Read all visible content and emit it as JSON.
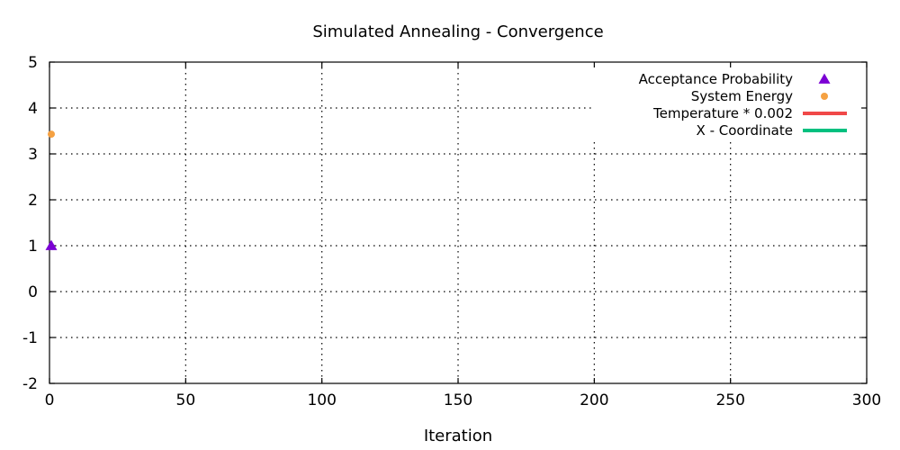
{
  "chart_data": {
    "type": "scatter",
    "title": "Simulated Annealing - Convergence",
    "xlabel": "Iteration",
    "ylabel": "",
    "xlim": [
      0,
      300
    ],
    "ylim": [
      -2,
      5
    ],
    "x_ticks": [
      0,
      50,
      100,
      150,
      200,
      250,
      300
    ],
    "y_ticks": [
      -2,
      -1,
      0,
      1,
      2,
      3,
      4,
      5
    ],
    "x_tick_labels": [
      "0",
      "50",
      "100",
      "150",
      "200",
      "250",
      "300"
    ],
    "y_tick_labels": [
      "-2",
      "-1",
      "0",
      "1",
      "2",
      "3",
      "4",
      "5"
    ],
    "grid": true,
    "legend_position": "top-right",
    "series": [
      {
        "name": "Acceptance Probability",
        "style": "points",
        "marker": "triangle",
        "color": "#7b00d4",
        "x": [
          0
        ],
        "y": [
          1.0
        ]
      },
      {
        "name": "System Energy",
        "style": "points",
        "marker": "circle",
        "color": "#f5a142",
        "x": [
          0
        ],
        "y": [
          3.43
        ]
      },
      {
        "name": "Temperature * 0.002",
        "style": "line",
        "color": "#f04848",
        "x": [],
        "y": []
      },
      {
        "name": "X - Coordinate",
        "style": "line",
        "color": "#00c07f",
        "x": [],
        "y": []
      }
    ]
  }
}
